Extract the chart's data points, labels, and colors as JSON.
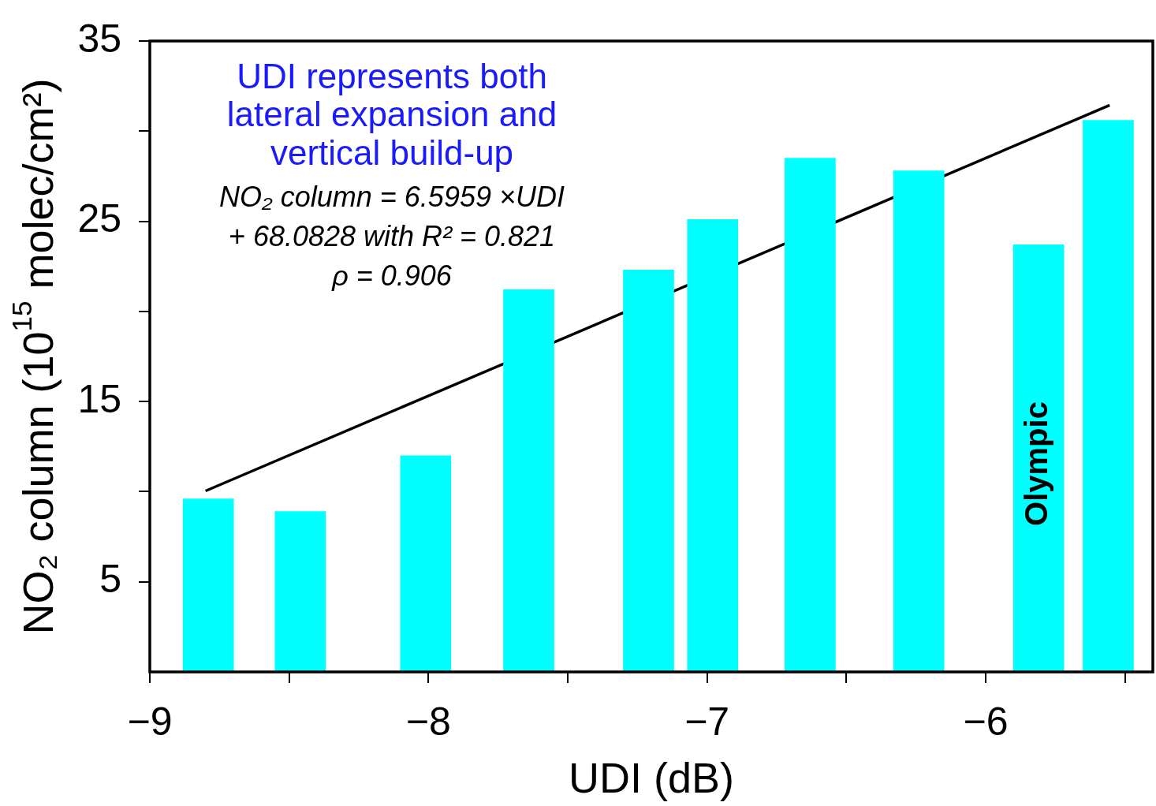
{
  "chart_data": {
    "type": "bar",
    "xlabel": "UDI (dB)",
    "ylabel": "NO₂ column (10$^{15}$ molec/cm²)",
    "x": [
      -8.79,
      -8.46,
      -8.01,
      -7.64,
      -7.21,
      -6.98,
      -6.63,
      -6.24,
      -5.81,
      -5.56
    ],
    "series": [
      {
        "color": "#00ffff",
        "values": [
          9.6,
          8.9,
          12.0,
          21.2,
          22.3,
          25.1,
          28.5,
          27.8,
          23.7,
          30.6
        ]
      },
      {
        "type": "line",
        "color": "#000000",
        "x": [
          -8.8,
          -5.555
        ],
        "values": [
          10.04,
          31.44
        ]
      }
    ],
    "xlim": [
      -9,
      -5.4
    ],
    "xticks": [
      -9,
      {
        "value": -8.5,
        "label": null
      },
      -8,
      {
        "value": -7.5,
        "label": null
      },
      -7,
      {
        "value": -6.5,
        "label": null
      },
      -6,
      {
        "value": -5.5,
        "label": null
      }
    ],
    "ylim": [
      0,
      35
    ],
    "yticks": [
      5,
      {
        "value": 10,
        "label": null
      },
      15,
      {
        "value": 20,
        "label": null
      },
      25,
      {
        "value": 30,
        "label": null
      },
      35
    ],
    "grid": false,
    "legend": false,
    "marker": "none",
    "line_style": "solid",
    "annotations": [
      "UDI represents both",
      "lateral expansion and",
      "vertical build-up",
      "NO₂ column = 6.5959 ×UDI",
      "+ 68.0828 with R² = 0.821",
      "ρ = 0.906",
      "Olympic"
    ]
  }
}
